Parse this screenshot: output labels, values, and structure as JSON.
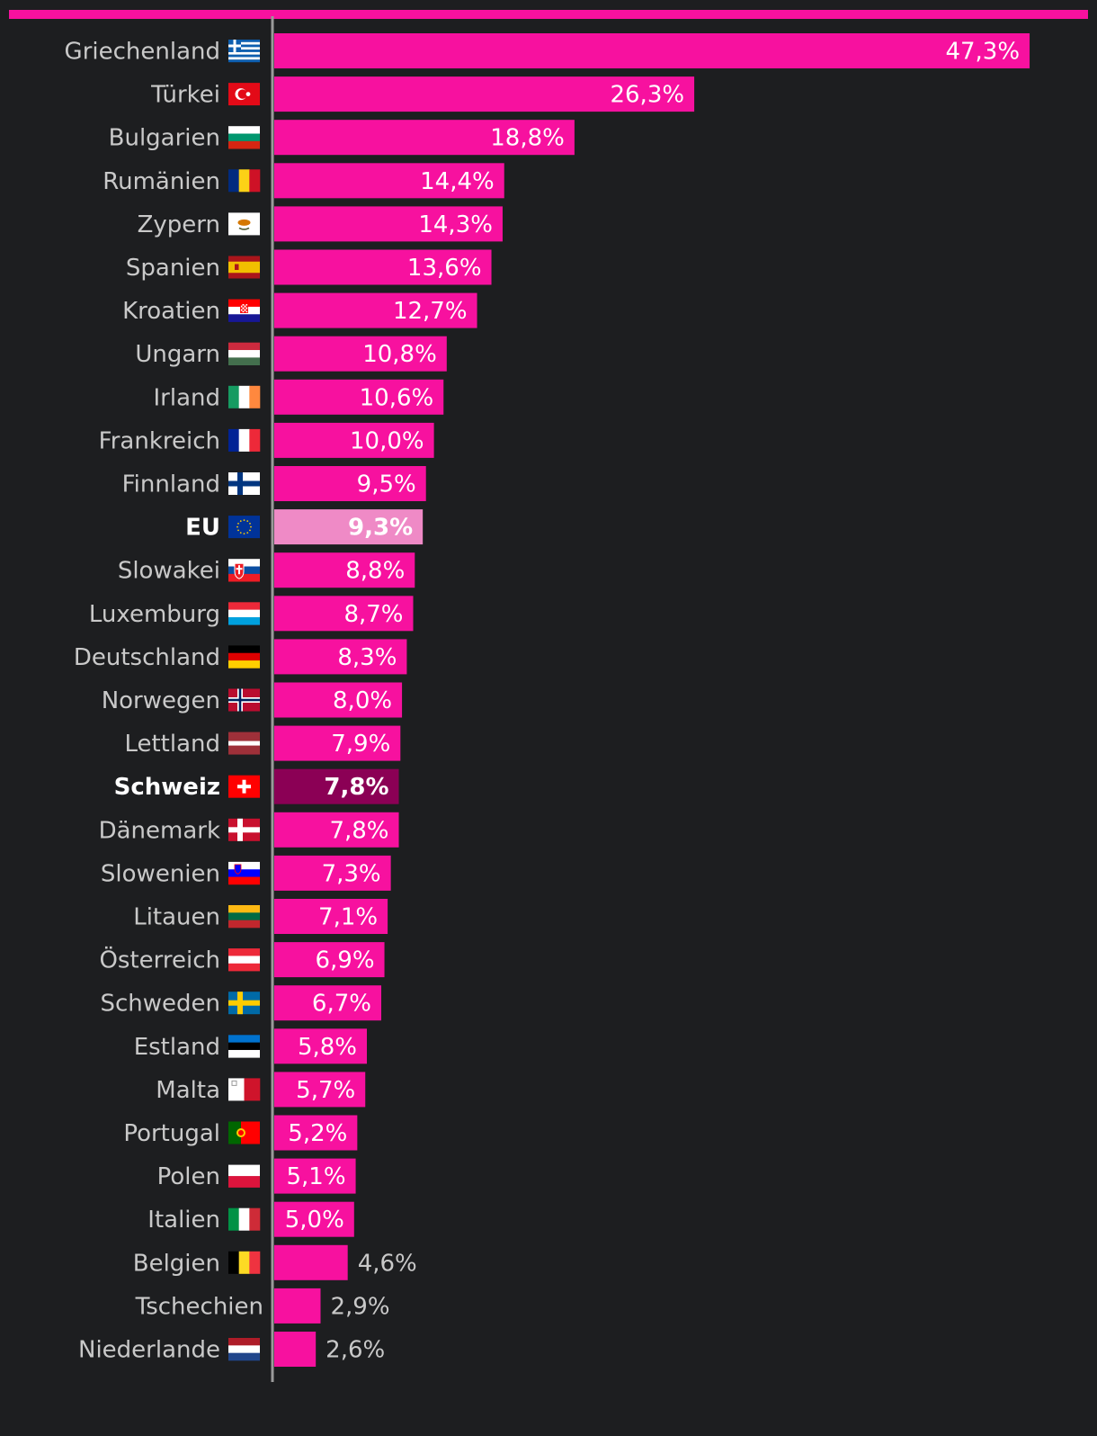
{
  "colors": {
    "background": "#1d1e20",
    "bar": "#f7119f",
    "bar_eu": "#ef8ac6",
    "bar_ch": "#8b0055",
    "axis": "#9a9a9a",
    "label": "#c9c9c9",
    "label_highlight": "#ffffff",
    "value_inside": "#ffffff",
    "value_outside": "#c9c9c9"
  },
  "chart_data": {
    "type": "bar",
    "orientation": "horizontal",
    "title": "",
    "xlabel": "",
    "ylabel": "",
    "xlim": [
      0,
      50
    ],
    "grid": false,
    "legend": "none",
    "highlighted": [
      "EU",
      "Schweiz"
    ],
    "categories": [
      "Griechenland",
      "Türkei",
      "Bulgarien",
      "Rumänien",
      "Zypern",
      "Spanien",
      "Kroatien",
      "Ungarn",
      "Irland",
      "Frankreich",
      "Finnland",
      "EU",
      "Slowakei",
      "Luxemburg",
      "Deutschland",
      "Norwegen",
      "Lettland",
      "Schweiz",
      "Dänemark",
      "Slowenien",
      "Litauen",
      "Österreich",
      "Schweden",
      "Estland",
      "Malta",
      "Portugal",
      "Polen",
      "Italien",
      "Belgien",
      "Tschechien",
      "Niederlande"
    ],
    "values": [
      47.3,
      26.3,
      18.8,
      14.4,
      14.3,
      13.6,
      12.7,
      10.8,
      10.6,
      10.0,
      9.5,
      9.3,
      8.8,
      8.7,
      8.3,
      8.0,
      7.9,
      7.8,
      7.8,
      7.3,
      7.1,
      6.9,
      6.7,
      5.8,
      5.7,
      5.2,
      5.1,
      5.0,
      4.6,
      2.9,
      2.6
    ],
    "value_labels": [
      "47,3%",
      "26,3%",
      "18,8%",
      "14,4%",
      "14,3%",
      "13,6%",
      "12,7%",
      "10,8%",
      "10,6%",
      "10,0%",
      "9,5%",
      "9,3%",
      "8,8%",
      "8,7%",
      "8,3%",
      "8,0%",
      "7,9%",
      "7,8%",
      "7,8%",
      "7,3%",
      "7,1%",
      "6,9%",
      "6,7%",
      "5,8%",
      "5,7%",
      "5,2%",
      "5,1%",
      "5,0%",
      "4,6%",
      "2,9%",
      "2,6%"
    ],
    "flags": [
      "greece-flag-icon",
      "turkey-flag-icon",
      "bulgaria-flag-icon",
      "romania-flag-icon",
      "cyprus-flag-icon",
      "spain-flag-icon",
      "croatia-flag-icon",
      "hungary-flag-icon",
      "ireland-flag-icon",
      "france-flag-icon",
      "finland-flag-icon",
      "eu-flag-icon",
      "slovakia-flag-icon",
      "luxembourg-flag-icon",
      "germany-flag-icon",
      "norway-flag-icon",
      "latvia-flag-icon",
      "switzerland-flag-icon",
      "denmark-flag-icon",
      "slovenia-flag-icon",
      "lithuania-flag-icon",
      "austria-flag-icon",
      "sweden-flag-icon",
      "estonia-flag-icon",
      "malta-flag-icon",
      "portugal-flag-icon",
      "poland-flag-icon",
      "italy-flag-icon",
      "belgium-flag-icon",
      "",
      "netherlands-flag-icon"
    ]
  }
}
